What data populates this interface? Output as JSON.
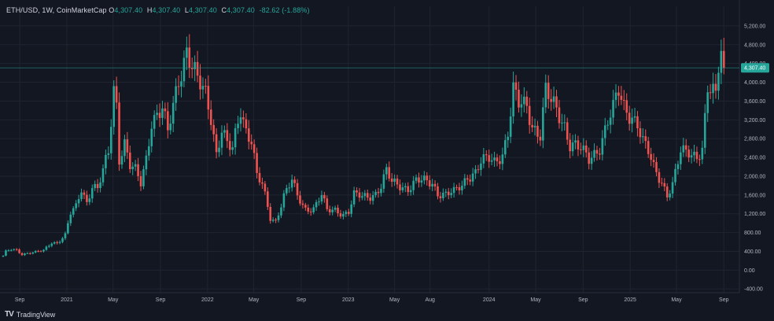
{
  "header": {
    "symbol": "ETH/USD",
    "interval": "1W",
    "source": "CoinMarketCap",
    "open_label": "O",
    "open": "4,307.40",
    "high_label": "H",
    "high": "4,307.40",
    "low_label": "L",
    "low": "4,307.40",
    "close_label": "C",
    "close": "4,307.40",
    "change": "-82.62 (-1.88%)"
  },
  "footer": {
    "logo_glyph": "TV",
    "brand": "TradingView"
  },
  "colors": {
    "up": "#26a69a",
    "down": "#ef5350",
    "background": "#131722",
    "grid": "#1f2430",
    "price_tag": "#26a69a"
  },
  "chart_data": {
    "type": "candlestick",
    "y_ticks": [
      -400,
      0,
      400,
      800,
      1200,
      1600,
      2000,
      2400,
      2800,
      3200,
      3600,
      4000,
      4400,
      4800,
      5200
    ],
    "y_tick_labels": [
      "-400.00",
      "0.00",
      "400.00",
      "800.00",
      "1,200.00",
      "1,600.00",
      "2,000.00",
      "2,400.00",
      "2,800.00",
      "3,200.00",
      "3,600.00",
      "4,000.00",
      "4,400.00",
      "4,800.00",
      "5,200.00"
    ],
    "ylim": [
      -480,
      5450
    ],
    "x_range": [
      "2020-07-20",
      "2025-09-29"
    ],
    "x_ticks": [
      {
        "date": "2020-09-01",
        "label": "Sep"
      },
      {
        "date": "2021-01-01",
        "label": "2021"
      },
      {
        "date": "2021-05-01",
        "label": "May"
      },
      {
        "date": "2021-09-01",
        "label": "Sep"
      },
      {
        "date": "2022-01-01",
        "label": "2022"
      },
      {
        "date": "2022-05-01",
        "label": "May"
      },
      {
        "date": "2022-09-01",
        "label": "Sep"
      },
      {
        "date": "2023-01-01",
        "label": "2023"
      },
      {
        "date": "2023-05-01",
        "label": "May"
      },
      {
        "date": "2023-08-01",
        "label": "Aug"
      },
      {
        "date": "2024-01-01",
        "label": "2024"
      },
      {
        "date": "2024-05-01",
        "label": "May"
      },
      {
        "date": "2024-09-01",
        "label": "Sep"
      },
      {
        "date": "2025-01-01",
        "label": "2025"
      },
      {
        "date": "2025-05-01",
        "label": "May"
      },
      {
        "date": "2025-09-01",
        "label": "Sep"
      }
    ],
    "current_price": 4307.4,
    "current_price_label": "4,307.40",
    "weekly_close_path": [
      [
        "2020-07-20",
        300
      ],
      [
        "2020-07-27",
        390
      ],
      [
        "2020-08-10",
        440
      ],
      [
        "2020-08-24",
        430
      ],
      [
        "2020-09-07",
        340
      ],
      [
        "2020-09-21",
        360
      ],
      [
        "2020-10-12",
        380
      ],
      [
        "2020-11-02",
        420
      ],
      [
        "2020-11-23",
        600
      ],
      [
        "2020-12-07",
        580
      ],
      [
        "2020-12-28",
        740
      ],
      [
        "2021-01-11",
        1200
      ],
      [
        "2021-01-25",
        1350
      ],
      [
        "2021-02-08",
        1750
      ],
      [
        "2021-02-22",
        1450
      ],
      [
        "2021-03-08",
        1800
      ],
      [
        "2021-03-22",
        1700
      ],
      [
        "2021-04-05",
        2100
      ],
      [
        "2021-04-19",
        2500
      ],
      [
        "2021-05-03",
        3900
      ],
      [
        "2021-05-10",
        3550
      ],
      [
        "2021-05-17",
        2400
      ],
      [
        "2021-05-31",
        2700
      ],
      [
        "2021-06-14",
        2200
      ],
      [
        "2021-06-28",
        2100
      ],
      [
        "2021-07-12",
        1850
      ],
      [
        "2021-07-26",
        2400
      ],
      [
        "2021-08-09",
        3200
      ],
      [
        "2021-08-23",
        3300
      ],
      [
        "2021-09-06",
        3400
      ],
      [
        "2021-09-20",
        2900
      ],
      [
        "2021-10-04",
        3500
      ],
      [
        "2021-10-18",
        4100
      ],
      [
        "2021-11-08",
        4700
      ],
      [
        "2021-11-22",
        4300
      ],
      [
        "2021-12-06",
        4000
      ],
      [
        "2021-12-27",
        3750
      ],
      [
        "2022-01-10",
        3300
      ],
      [
        "2022-01-24",
        2500
      ],
      [
        "2022-02-07",
        3000
      ],
      [
        "2022-02-21",
        2650
      ],
      [
        "2022-03-07",
        2550
      ],
      [
        "2022-03-28",
        3450
      ],
      [
        "2022-04-11",
        3000
      ],
      [
        "2022-04-25",
        2800
      ],
      [
        "2022-05-09",
        2000
      ],
      [
        "2022-05-23",
        1800
      ],
      [
        "2022-06-13",
        1100
      ],
      [
        "2022-06-27",
        1050
      ],
      [
        "2022-07-18",
        1600
      ],
      [
        "2022-08-08",
        1900
      ],
      [
        "2022-08-22",
        1550
      ],
      [
        "2022-09-12",
        1300
      ],
      [
        "2022-10-03",
        1330
      ],
      [
        "2022-10-24",
        1600
      ],
      [
        "2022-11-07",
        1250
      ],
      [
        "2022-11-28",
        1280
      ],
      [
        "2022-12-19",
        1200
      ],
      [
        "2023-01-02",
        1250
      ],
      [
        "2023-01-16",
        1600
      ],
      [
        "2023-02-06",
        1550
      ],
      [
        "2023-02-27",
        1580
      ],
      [
        "2023-03-13",
        1650
      ],
      [
        "2023-03-27",
        1800
      ],
      [
        "2023-04-10",
        2100
      ],
      [
        "2023-04-24",
        1850
      ],
      [
        "2023-05-15",
        1800
      ],
      [
        "2023-06-05",
        1750
      ],
      [
        "2023-06-26",
        1900
      ],
      [
        "2023-07-17",
        1880
      ],
      [
        "2023-08-07",
        1850
      ],
      [
        "2023-08-21",
        1650
      ],
      [
        "2023-09-11",
        1620
      ],
      [
        "2023-10-02",
        1650
      ],
      [
        "2023-10-23",
        1800
      ],
      [
        "2023-11-06",
        2000
      ],
      [
        "2023-11-27",
        2100
      ],
      [
        "2023-12-11",
        2300
      ],
      [
        "2024-01-01",
        2350
      ],
      [
        "2024-01-15",
        2300
      ],
      [
        "2024-02-05",
        2500
      ],
      [
        "2024-02-19",
        2950
      ],
      [
        "2024-03-04",
        3800
      ],
      [
        "2024-03-18",
        3500
      ],
      [
        "2024-04-08",
        3500
      ],
      [
        "2024-04-22",
        3100
      ],
      [
        "2024-05-13",
        2900
      ],
      [
        "2024-05-27",
        3800
      ],
      [
        "2024-06-10",
        3550
      ],
      [
        "2024-06-24",
        3400
      ],
      [
        "2024-07-15",
        3100
      ],
      [
        "2024-07-29",
        2700
      ],
      [
        "2024-08-12",
        2650
      ],
      [
        "2024-08-26",
        2550
      ],
      [
        "2024-09-16",
        2350
      ],
      [
        "2024-09-30",
        2500
      ],
      [
        "2024-10-14",
        2650
      ],
      [
        "2024-11-04",
        3150
      ],
      [
        "2024-11-18",
        3400
      ],
      [
        "2024-12-02",
        3800
      ],
      [
        "2024-12-16",
        3500
      ],
      [
        "2025-01-06",
        3300
      ],
      [
        "2025-01-20",
        3100
      ],
      [
        "2025-02-03",
        2700
      ],
      [
        "2025-02-17",
        2500
      ],
      [
        "2025-03-03",
        2200
      ],
      [
        "2025-03-24",
        1900
      ],
      [
        "2025-04-07",
        1600
      ],
      [
        "2025-04-21",
        1800
      ],
      [
        "2025-05-12",
        2500
      ],
      [
        "2025-06-02",
        2550
      ],
      [
        "2025-06-23",
        2450
      ],
      [
        "2025-07-07",
        2550
      ],
      [
        "2025-07-21",
        3800
      ],
      [
        "2025-08-11",
        3700
      ],
      [
        "2025-08-18",
        4400
      ],
      [
        "2025-08-25",
        4790
      ],
      [
        "2025-09-01",
        4307
      ]
    ]
  }
}
